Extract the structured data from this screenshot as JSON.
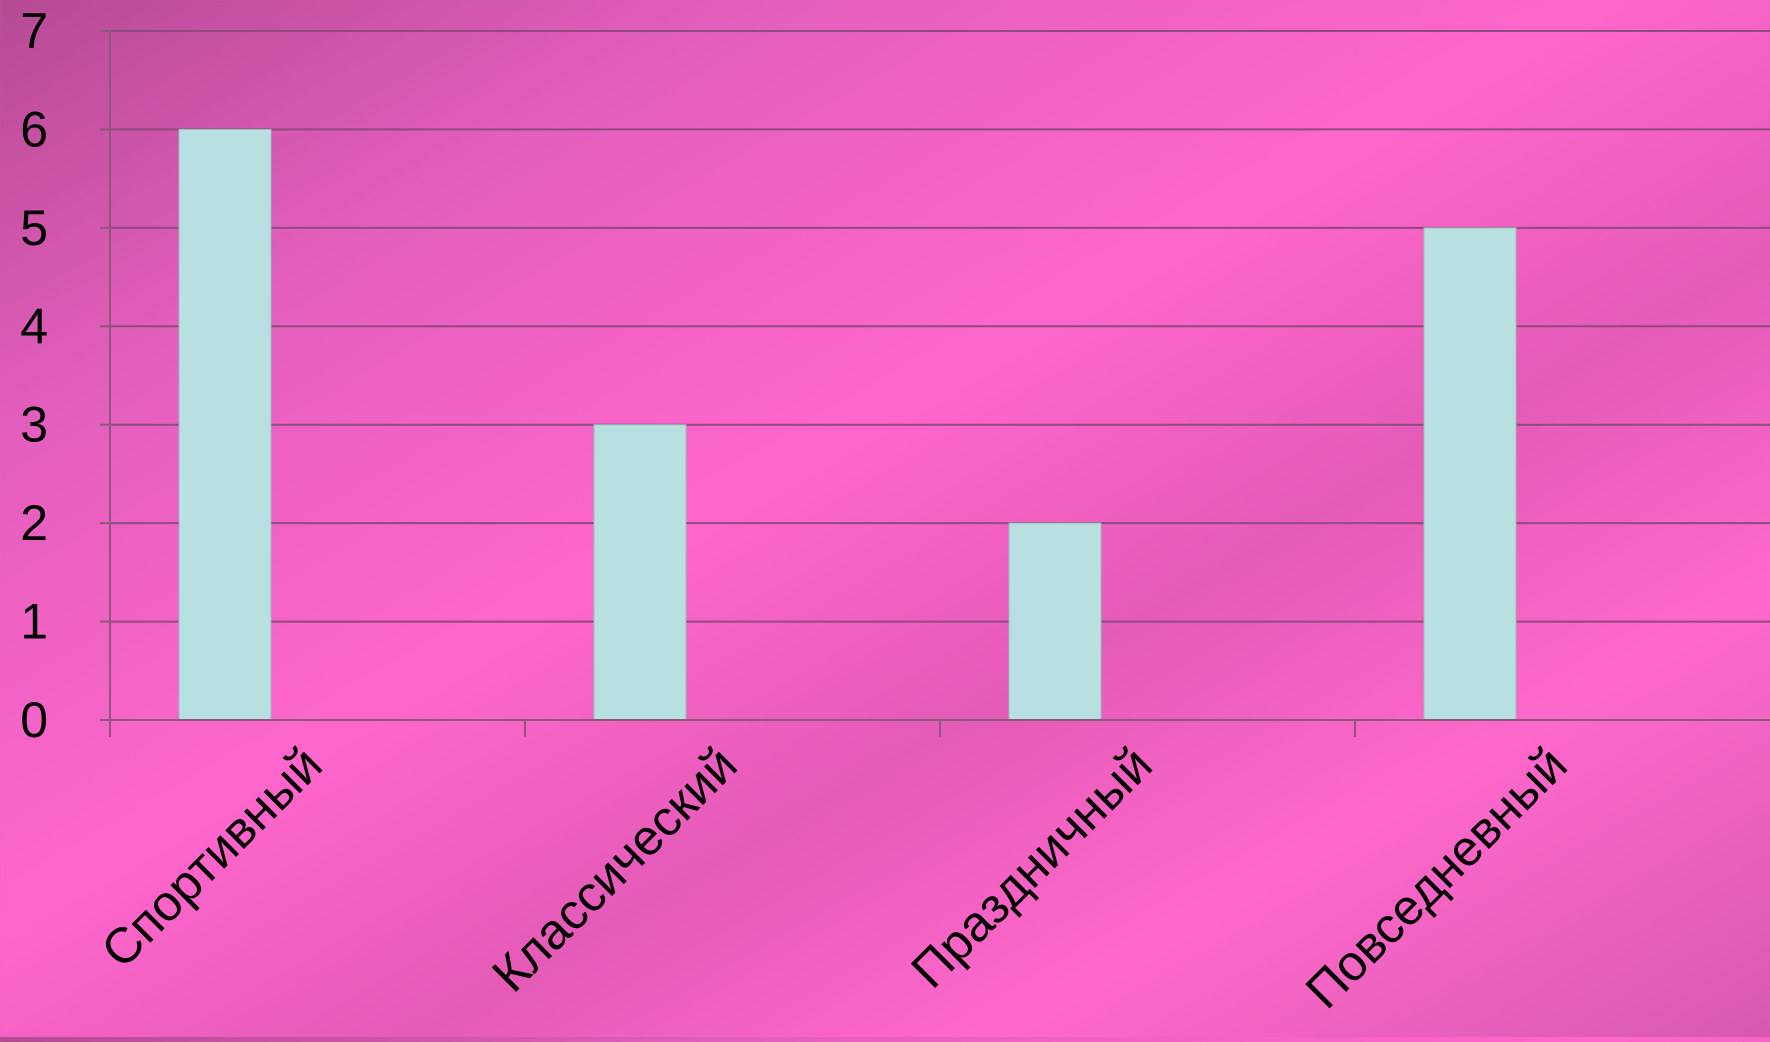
{
  "chart_data": {
    "type": "bar",
    "categories": [
      "Спортивный",
      "Классический",
      "Праздничный",
      "Повседневный"
    ],
    "values": [
      6,
      3,
      2,
      5
    ],
    "ylim": [
      0,
      7
    ],
    "yticks": [
      "0",
      "1",
      "2",
      "3",
      "4",
      "5",
      "6",
      "7"
    ],
    "grid": true,
    "legend": "none",
    "colors": {
      "bar": "#b9e0e0",
      "grid": "#8f4a80",
      "axis": "#8a5a7a",
      "text": "#000000"
    }
  }
}
